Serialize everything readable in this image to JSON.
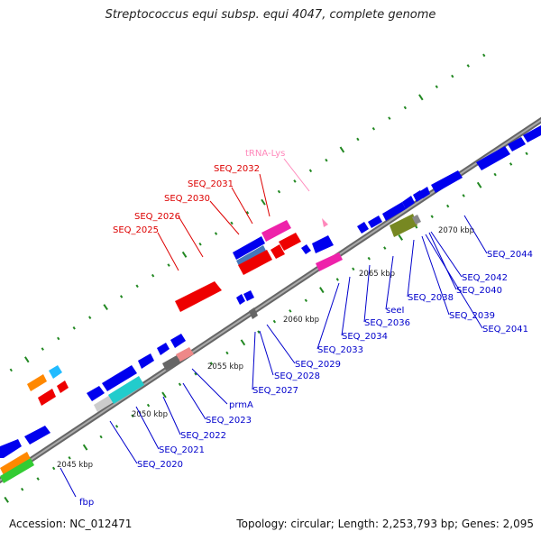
{
  "title": "Streptococcus equi subsp. equi 4047, complete genome",
  "footer": {
    "accession": "Accession: NC_012471",
    "summary": "Topology: circular; Length: 2,253,793 bp; Genes: 2,095"
  },
  "colors": {
    "gene": "#0000ee",
    "highlight": "#ee0000",
    "label_blue": "#0000cc",
    "label_red": "#dd0000",
    "trna": "#ff88bb",
    "backbone": "#777777",
    "tick": "#228822"
  },
  "scale_labels": [
    "2045 kbp",
    "2050 kbp",
    "2055 kbp",
    "2060 kbp",
    "2065 kbp",
    "2070 kbp"
  ],
  "gene_labels_red": [
    "SEQ_2025",
    "SEQ_2026",
    "SEQ_2030",
    "SEQ_2031",
    "SEQ_2032"
  ],
  "trna_label": "tRNA-Lys",
  "gene_labels_blue": [
    "fbp",
    "SEQ_2020",
    "SEQ_2021",
    "SEQ_2022",
    "SEQ_2023",
    "prmA",
    "SEQ_2027",
    "SEQ_2028",
    "SEQ_2029",
    "SEQ_2033",
    "SEQ_2034",
    "SEQ_2036",
    "seeI",
    "SEQ_2038",
    "SEQ_2039",
    "SEQ_2040",
    "SEQ_2041",
    "SEQ_2042",
    "SEQ_2044"
  ]
}
